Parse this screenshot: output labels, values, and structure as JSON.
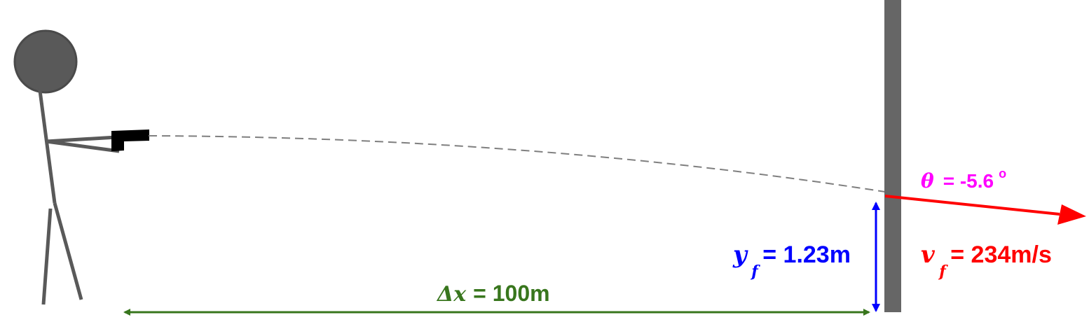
{
  "labels": {
    "delta_x": {
      "symbol": "Δx",
      "value": "= 100m"
    },
    "y_f": {
      "symbol": "y",
      "subscript": "f",
      "value": "= 1.23m"
    },
    "v_f": {
      "symbol": "v",
      "subscript": "f",
      "value": "= 234m/s"
    },
    "theta": {
      "symbol": "θ",
      "value": "= -5.6",
      "unit": "o"
    }
  },
  "colors": {
    "figure": "#595959",
    "gun": "#000000",
    "wall": "#666666",
    "trajectory": "#7f7f7f",
    "delta_x": "#38761d",
    "y_f": "#0000ff",
    "v_f": "#ff0000",
    "theta": "#ff00ff"
  }
}
